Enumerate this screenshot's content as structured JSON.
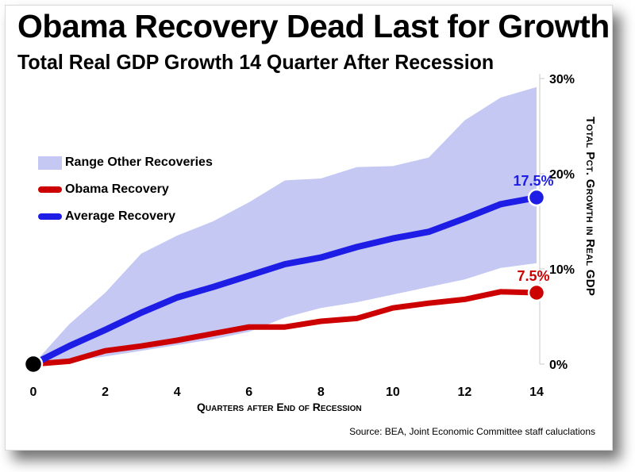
{
  "chart_data": {
    "type": "line",
    "title": "Obama Recovery Dead Last for Growth",
    "subtitle": "Total Real GDP Growth 14 Quarter After Recession",
    "xlabel": "Quarters after End of Recession",
    "ylabel": "Total Pct. Growth in Real GDP",
    "x": [
      0,
      1,
      2,
      3,
      4,
      5,
      6,
      7,
      8,
      9,
      10,
      11,
      12,
      13,
      14
    ],
    "xticks": [
      "0",
      "2",
      "4",
      "6",
      "8",
      "10",
      "12",
      "14"
    ],
    "yticks": [
      "0%",
      "10%",
      "20%",
      "30%"
    ],
    "ylim": [
      0,
      30
    ],
    "xlim": [
      0,
      14
    ],
    "range_other_recoveries": {
      "name": "Range Other Recoveries",
      "color": "#c4c8f3",
      "upper": [
        0,
        4.2,
        7.5,
        11.6,
        13.5,
        15.0,
        17.0,
        19.3,
        19.5,
        20.7,
        20.8,
        21.7,
        25.6,
        28.0,
        29.1
      ],
      "lower": [
        0,
        0.3,
        0.8,
        1.4,
        2.0,
        2.6,
        3.4,
        4.9,
        5.9,
        6.5,
        7.3,
        8.1,
        8.9,
        10.1,
        10.6
      ]
    },
    "series": [
      {
        "name": "Obama Recovery",
        "color": "#cc0000",
        "values": [
          0,
          0.3,
          1.4,
          1.9,
          2.5,
          3.2,
          3.9,
          3.9,
          4.5,
          4.8,
          5.9,
          6.4,
          6.8,
          7.6,
          7.5
        ],
        "end_label": "7.5%"
      },
      {
        "name": "Average Recovery",
        "color": "#1d1de6",
        "values": [
          0,
          1.9,
          3.6,
          5.4,
          7.0,
          8.1,
          9.3,
          10.5,
          11.2,
          12.3,
          13.2,
          13.9,
          15.3,
          16.8,
          17.5
        ],
        "end_label": "17.5%"
      }
    ],
    "legend": [
      "Range Other Recoveries",
      "Obama Recovery",
      "Average Recovery"
    ],
    "legend_position": "left",
    "source": "Source:  BEA, Joint Economic Committee staff caluclations"
  }
}
